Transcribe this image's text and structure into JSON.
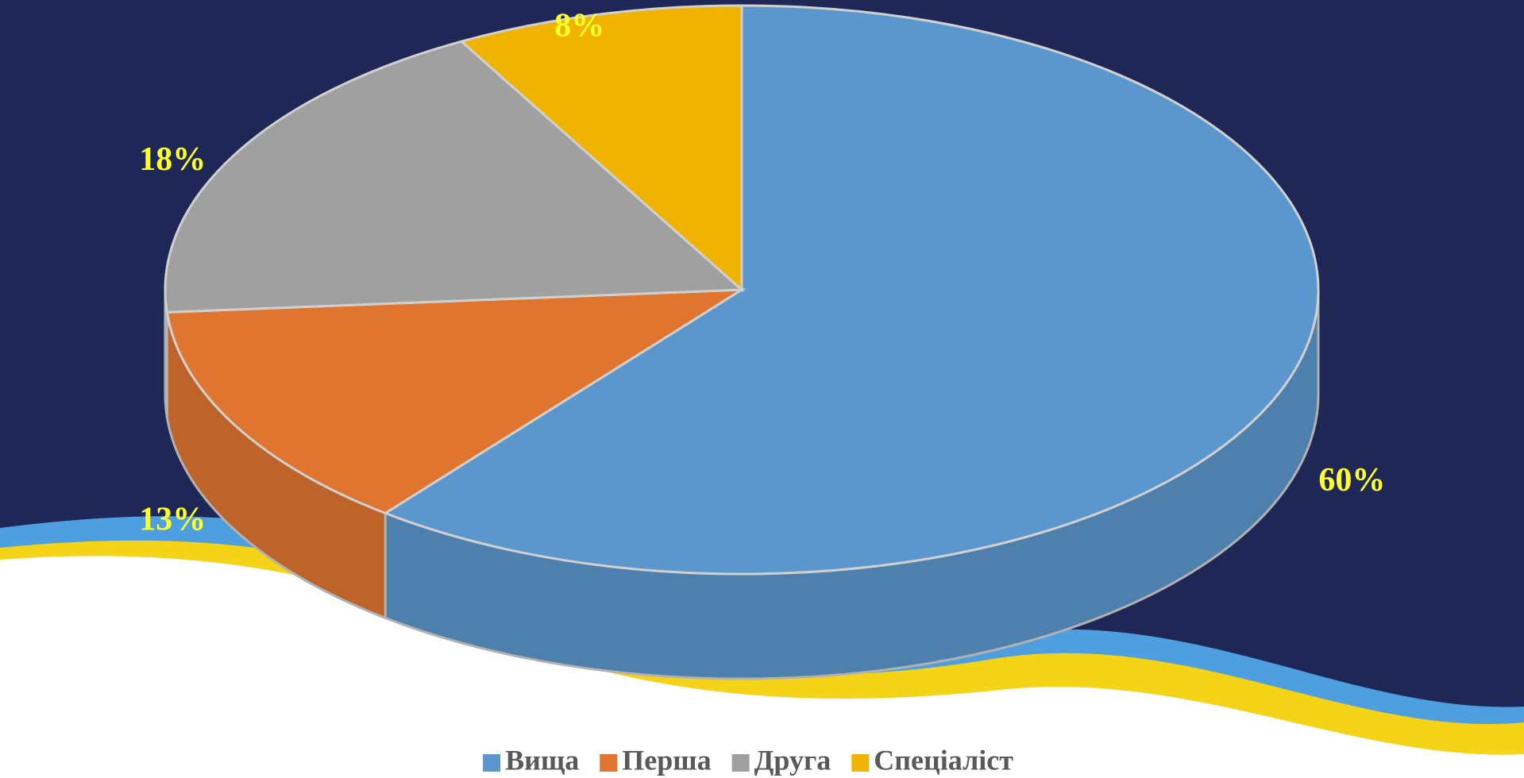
{
  "chart_data": {
    "type": "pie3d",
    "categories": [
      "Вища",
      "Перша",
      "Друга",
      "Спеціаліст"
    ],
    "values": [
      60,
      13,
      18,
      8
    ],
    "value_labels": [
      "60%",
      "13%",
      "18%",
      "8%"
    ],
    "colors": [
      "#5b96cc",
      "#e07530",
      "#a0a0a0",
      "#f0b400"
    ],
    "legend": "bottom"
  }
}
